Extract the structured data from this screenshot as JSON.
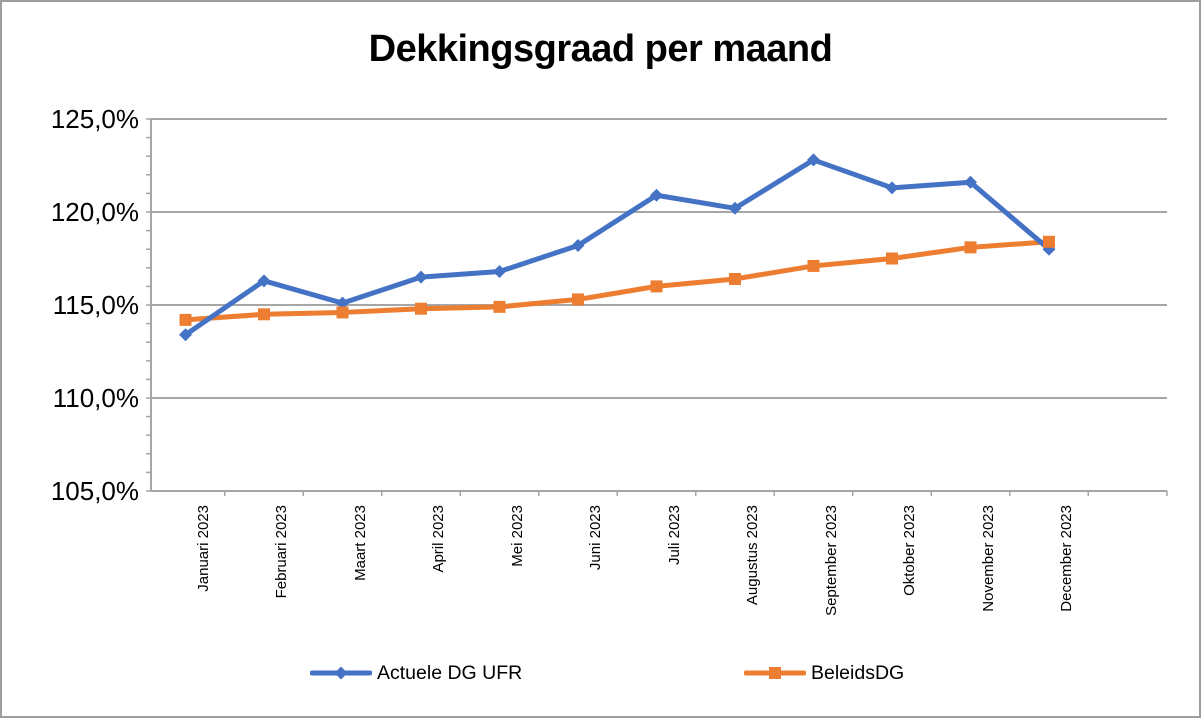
{
  "chart_data": {
    "type": "line",
    "title": "Dekkingsgraad per maand",
    "categories": [
      "Januari 2023",
      "Februari 2023",
      "Maart 2023",
      "April 2023",
      "Mei 2023",
      "Juni 2023",
      "Juli 2023",
      "Augustus 2023",
      "September 2023",
      "Oktober 2023",
      "November 2023",
      "December 2023"
    ],
    "series": [
      {
        "name": "Actuele DG UFR",
        "color": "#4472C4",
        "marker": "diamond",
        "values": [
          113.4,
          116.3,
          115.1,
          116.5,
          116.8,
          118.2,
          120.9,
          120.2,
          122.8,
          121.3,
          121.6,
          118.0
        ]
      },
      {
        "name": "BeleidsDG",
        "color": "#ED7D31",
        "marker": "square",
        "values": [
          114.2,
          114.5,
          114.6,
          114.8,
          114.9,
          115.3,
          116.0,
          116.4,
          117.1,
          117.5,
          118.1,
          118.4
        ]
      }
    ],
    "y_axis": {
      "min": 105,
      "max": 125,
      "major_step": 5,
      "minor_step": 1,
      "tick_labels": [
        "125,0%",
        "120,0%",
        "115,0%",
        "110,0%",
        "105,0%"
      ]
    },
    "x_axis": {
      "label_rotation_degrees": 90
    },
    "grid": true,
    "legend_position": "bottom"
  },
  "colors": {
    "series_blue": "#4472C4",
    "series_orange": "#ED7D31",
    "gridline": "#A6A6A6",
    "axis": "#A6A6A6",
    "border": "#9E9E9E",
    "background": "#FFFFFF",
    "text": "#000000"
  }
}
